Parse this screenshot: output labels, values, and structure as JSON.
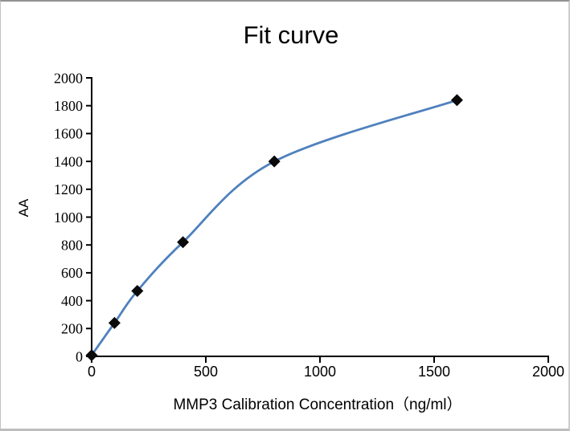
{
  "chart_data": {
    "type": "line",
    "title": "Fit curve",
    "xlabel": "MMP3 Calibration Concentration（ng/ml）",
    "ylabel": "AA",
    "x": [
      0,
      100,
      200,
      400,
      800,
      1600
    ],
    "y": [
      8,
      240,
      470,
      820,
      1400,
      1840
    ],
    "xlim": [
      0,
      2000
    ],
    "ylim": [
      0,
      2000
    ],
    "xticks": [
      0,
      500,
      1000,
      1500,
      2000
    ],
    "yticks": [
      0,
      200,
      400,
      600,
      800,
      1000,
      1200,
      1400,
      1600,
      1800,
      2000
    ],
    "grid": false,
    "legend": false,
    "marker": "diamond",
    "line_color": "#4f81bd",
    "marker_color": "#0a0a0a",
    "axis_color": "#000000"
  }
}
